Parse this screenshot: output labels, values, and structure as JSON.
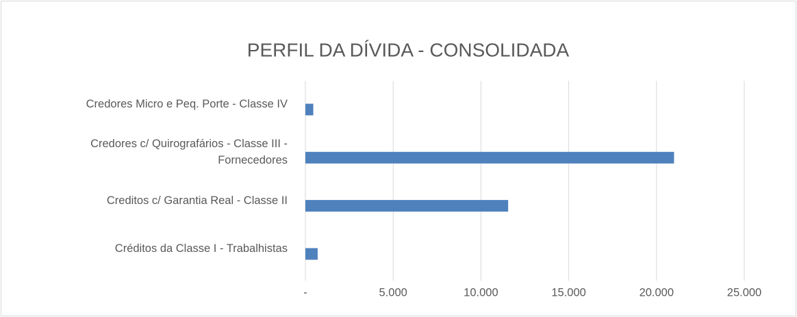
{
  "chart_data": {
    "type": "barh",
    "title": "PERFIL DA DÍVIDA - CONSOLIDADA",
    "categories": [
      "Credores Micro e Peq. Porte - Classe IV",
      "Credores c/ Quirografários - Classe III - Fornecedores",
      "Creditos c/ Garantia Real - Classe II",
      "Créditos da Classe I - Trabalhistas"
    ],
    "values": [
      450,
      21000,
      11550,
      700
    ],
    "color": "#4f81bd",
    "xlim": [
      0,
      25000
    ],
    "xticks": [
      {
        "value": 0,
        "label": "-"
      },
      {
        "value": 5000,
        "label": "5.000"
      },
      {
        "value": 10000,
        "label": "10.000"
      },
      {
        "value": 15000,
        "label": "15.000"
      },
      {
        "value": 20000,
        "label": "20.000"
      },
      {
        "value": 25000,
        "label": "25.000"
      }
    ],
    "grid": true
  }
}
